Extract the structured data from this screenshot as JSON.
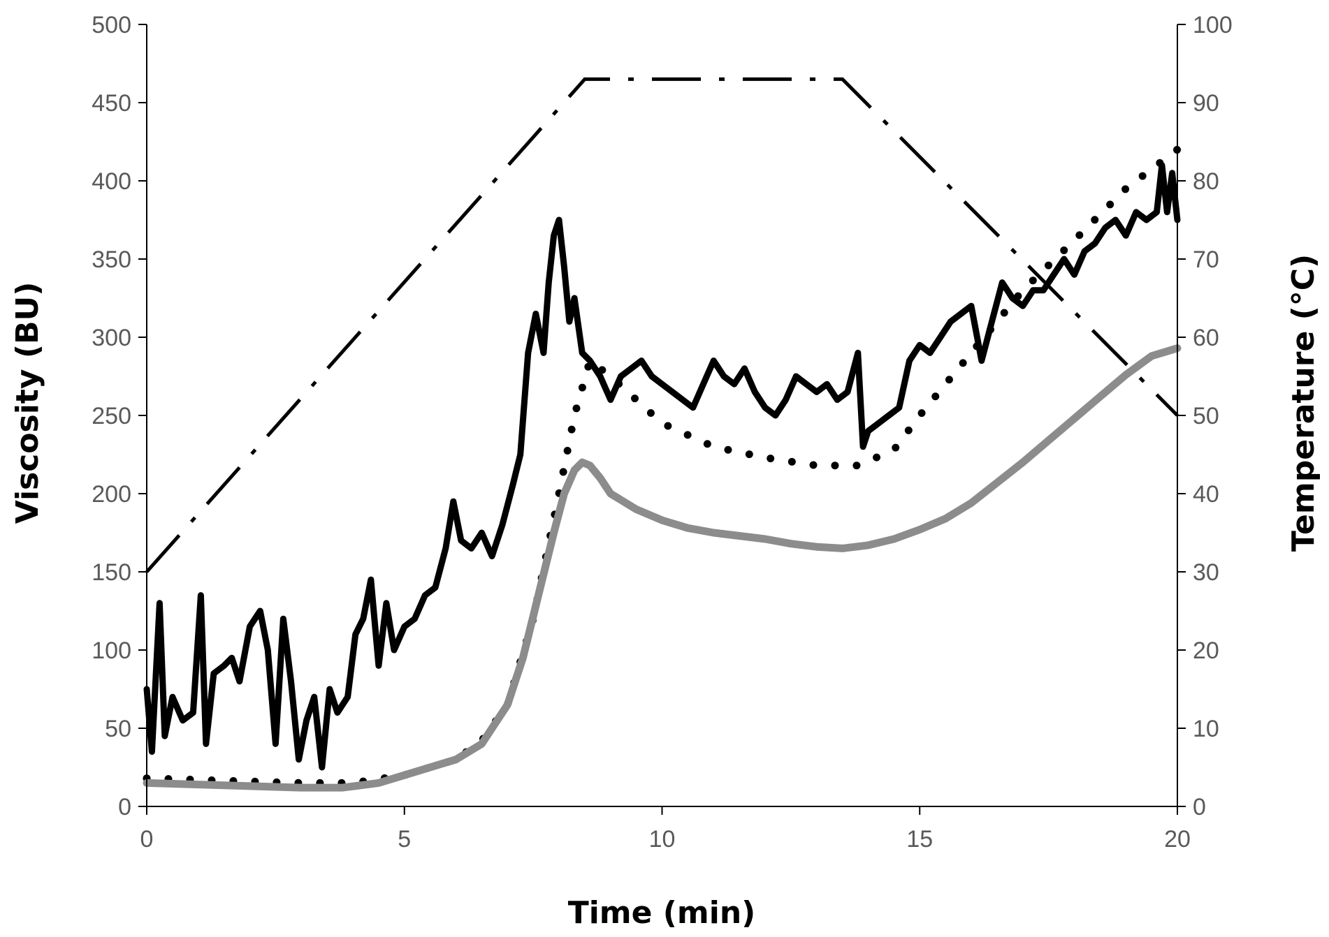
{
  "chart_data": {
    "type": "line",
    "xlabel": "Time (min)",
    "ylabel": "Viscosity (BU)",
    "y2label": "Temperature (°C)",
    "xlim": [
      0,
      20
    ],
    "ylim": [
      0,
      500
    ],
    "y2lim": [
      0,
      100
    ],
    "xticks": [
      0,
      5,
      10,
      15,
      20
    ],
    "yticks": [
      0,
      50,
      100,
      150,
      200,
      250,
      300,
      350,
      400,
      450,
      500
    ],
    "y2ticks": [
      0,
      10,
      20,
      30,
      40,
      50,
      60,
      70,
      80,
      90,
      100
    ],
    "grid": false,
    "legend": "none",
    "series": [
      {
        "axis": "right",
        "style": "dash-dot",
        "color": "#000000",
        "x": [
          0,
          8.5,
          13.5,
          20
        ],
        "values": [
          30,
          93,
          93,
          50
        ]
      },
      {
        "axis": "left",
        "style": "noisy-solid",
        "color": "#000000",
        "x": [
          0,
          0.1,
          0.25,
          0.35,
          0.5,
          0.7,
          0.9,
          1.05,
          1.15,
          1.3,
          1.5,
          1.65,
          1.8,
          2.0,
          2.2,
          2.35,
          2.5,
          2.65,
          2.8,
          2.95,
          3.1,
          3.25,
          3.4,
          3.55,
          3.7,
          3.9,
          4.05,
          4.2,
          4.35,
          4.5,
          4.65,
          4.8,
          5.0,
          5.2,
          5.4,
          5.6,
          5.8,
          5.95,
          6.1,
          6.3,
          6.5,
          6.7,
          6.9,
          7.1,
          7.25,
          7.4,
          7.55,
          7.7,
          7.8,
          7.9,
          8.0,
          8.1,
          8.2,
          8.3,
          8.45,
          8.6,
          8.8,
          9.0,
          9.2,
          9.4,
          9.6,
          9.8,
          10.0,
          10.2,
          10.4,
          10.6,
          10.8,
          11.0,
          11.2,
          11.4,
          11.6,
          11.8,
          12.0,
          12.2,
          12.4,
          12.6,
          12.8,
          13.0,
          13.2,
          13.4,
          13.6,
          13.8,
          13.9,
          14.0,
          14.2,
          14.4,
          14.6,
          14.8,
          15.0,
          15.2,
          15.4,
          15.6,
          15.8,
          16.0,
          16.2,
          16.4,
          16.6,
          16.8,
          17.0,
          17.2,
          17.4,
          17.6,
          17.8,
          18.0,
          18.2,
          18.4,
          18.6,
          18.8,
          19.0,
          19.2,
          19.4,
          19.6,
          19.7,
          19.8,
          19.9,
          20.0
        ],
        "values": [
          75,
          35,
          130,
          45,
          70,
          55,
          60,
          135,
          40,
          85,
          90,
          95,
          80,
          115,
          125,
          100,
          40,
          120,
          80,
          30,
          55,
          70,
          25,
          75,
          60,
          70,
          110,
          120,
          145,
          90,
          130,
          100,
          115,
          120,
          135,
          140,
          165,
          195,
          170,
          165,
          175,
          160,
          180,
          205,
          225,
          290,
          315,
          290,
          335,
          365,
          375,
          345,
          310,
          325,
          290,
          285,
          275,
          260,
          275,
          280,
          285,
          275,
          270,
          265,
          260,
          255,
          270,
          285,
          275,
          270,
          280,
          265,
          255,
          250,
          260,
          275,
          270,
          265,
          270,
          260,
          265,
          290,
          230,
          240,
          245,
          250,
          255,
          285,
          295,
          290,
          300,
          310,
          315,
          320,
          285,
          310,
          335,
          325,
          320,
          330,
          330,
          340,
          350,
          340,
          355,
          360,
          370,
          375,
          365,
          380,
          375,
          380,
          410,
          380,
          405,
          375
        ]
      },
      {
        "axis": "left",
        "style": "dotted",
        "color": "#000000",
        "x": [
          0,
          1,
          2,
          3,
          4,
          5,
          6,
          6.5,
          7,
          7.5,
          8,
          8.3,
          8.6,
          9,
          10,
          11,
          12,
          13,
          13.8,
          14.5,
          15,
          16,
          17,
          18,
          19,
          20
        ],
        "values": [
          18,
          17,
          16,
          15,
          15,
          20,
          30,
          42,
          65,
          120,
          200,
          250,
          285,
          275,
          245,
          230,
          223,
          218,
          218,
          228,
          250,
          290,
          330,
          362,
          395,
          420
        ]
      },
      {
        "axis": "left",
        "style": "thick-solid",
        "color": "#8c8c8c",
        "x": [
          0,
          1,
          2,
          3,
          3.8,
          4.5,
          5,
          5.5,
          6,
          6.5,
          7,
          7.3,
          7.6,
          7.9,
          8.1,
          8.3,
          8.45,
          8.6,
          8.8,
          9,
          9.5,
          10,
          10.5,
          11,
          11.5,
          12,
          12.5,
          13,
          13.5,
          14,
          14.5,
          15,
          15.5,
          16,
          16.5,
          17,
          17.5,
          18,
          18.5,
          19,
          19.5,
          20
        ],
        "values": [
          15,
          14,
          13,
          12,
          12,
          15,
          20,
          25,
          30,
          40,
          65,
          95,
          135,
          175,
          200,
          215,
          220,
          218,
          210,
          200,
          190,
          183,
          178,
          175,
          173,
          171,
          168,
          166,
          165,
          167,
          171,
          177,
          184,
          194,
          207,
          220,
          234,
          248,
          262,
          276,
          288,
          293
        ]
      }
    ]
  }
}
